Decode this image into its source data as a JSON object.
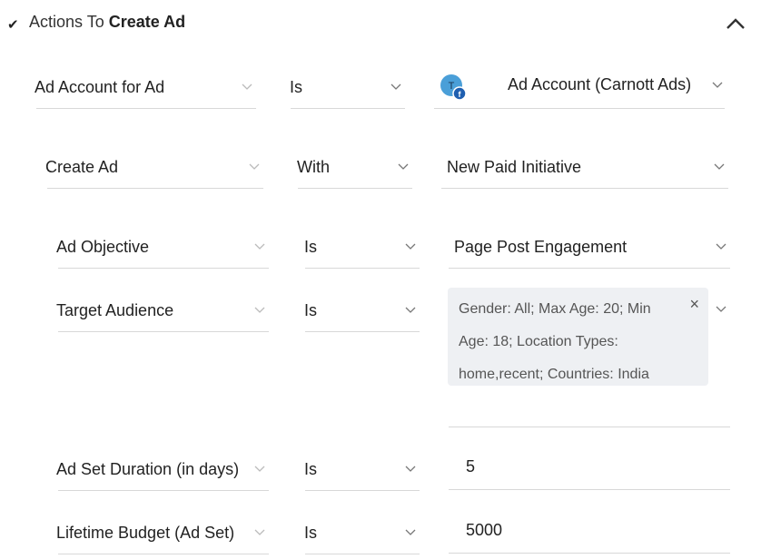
{
  "section": {
    "prefix": "Actions To ",
    "title": "Create Ad"
  },
  "rows": {
    "ad_account": {
      "field": "Ad Account for Ad",
      "operator": "Is",
      "value": "Ad Account (Carnott Ads)",
      "avatar_letter": "T"
    },
    "create_ad": {
      "field": "Create Ad",
      "operator": "With",
      "value": "New Paid Initiative"
    },
    "objective": {
      "field": "Ad Objective",
      "operator": "Is",
      "value": "Page Post Engagement"
    },
    "audience": {
      "field": "Target Audience",
      "operator": "Is",
      "chip_text": "Gender: All; Max Age: 20; Min Age: 18; Location Types: home,recent; Countries: India",
      "chip_close": "×"
    },
    "duration": {
      "field": "Ad Set Duration (in days)",
      "operator": "Is",
      "value": "5"
    },
    "budget": {
      "field": "Lifetime Budget (Ad Set)",
      "operator": "Is",
      "value": "5000"
    }
  },
  "colors": {
    "avatar": "#4a9fd8",
    "facebook_badge": "#1f5fb0",
    "chevron": "#999999"
  }
}
